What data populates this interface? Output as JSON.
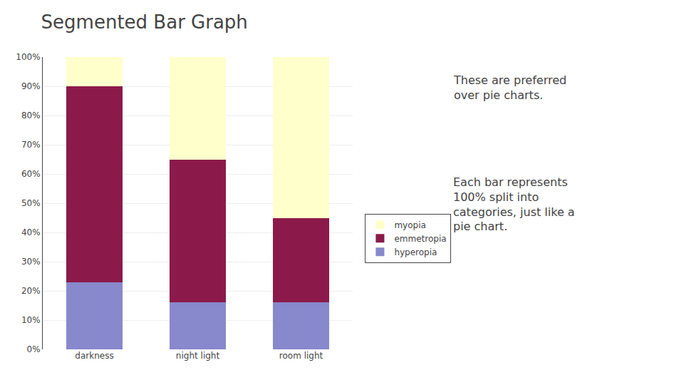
{
  "chart_data": {
    "type": "bar",
    "stacked": true,
    "title": "Segmented Bar Graph",
    "annotations": [
      "These are preferred\nover pie charts.",
      "Each bar represents\n100% split into\ncategories, just like a\npie chart."
    ],
    "categories": [
      "darkness",
      "night light",
      "room light"
    ],
    "series": [
      {
        "name": "hyperopia",
        "color": "#8888cc",
        "values": [
          0.23,
          0.16,
          0.16
        ]
      },
      {
        "name": "emmetropia",
        "color": "#8b1a4a",
        "values": [
          0.67,
          0.49,
          0.29
        ]
      },
      {
        "name": "myopia",
        "color": "#ffffcc",
        "values": [
          0.1,
          0.35,
          0.55
        ]
      }
    ],
    "ylim": [
      0.0,
      1.0
    ],
    "yticks": [
      {
        "value": 0.0,
        "label": "0%"
      },
      {
        "value": 0.1,
        "label": "10%"
      },
      {
        "value": 0.2,
        "label": "20%"
      },
      {
        "value": 0.3,
        "label": "30%"
      },
      {
        "value": 0.4,
        "label": "40%"
      },
      {
        "value": 0.5,
        "label": "50%"
      },
      {
        "value": 0.6,
        "label": "60%"
      },
      {
        "value": 0.7,
        "label": "70%"
      },
      {
        "value": 0.8,
        "label": "80%"
      },
      {
        "value": 0.9,
        "label": "90%"
      },
      {
        "value": 1.0,
        "label": "100%"
      }
    ],
    "grid": true,
    "legend": "right"
  }
}
